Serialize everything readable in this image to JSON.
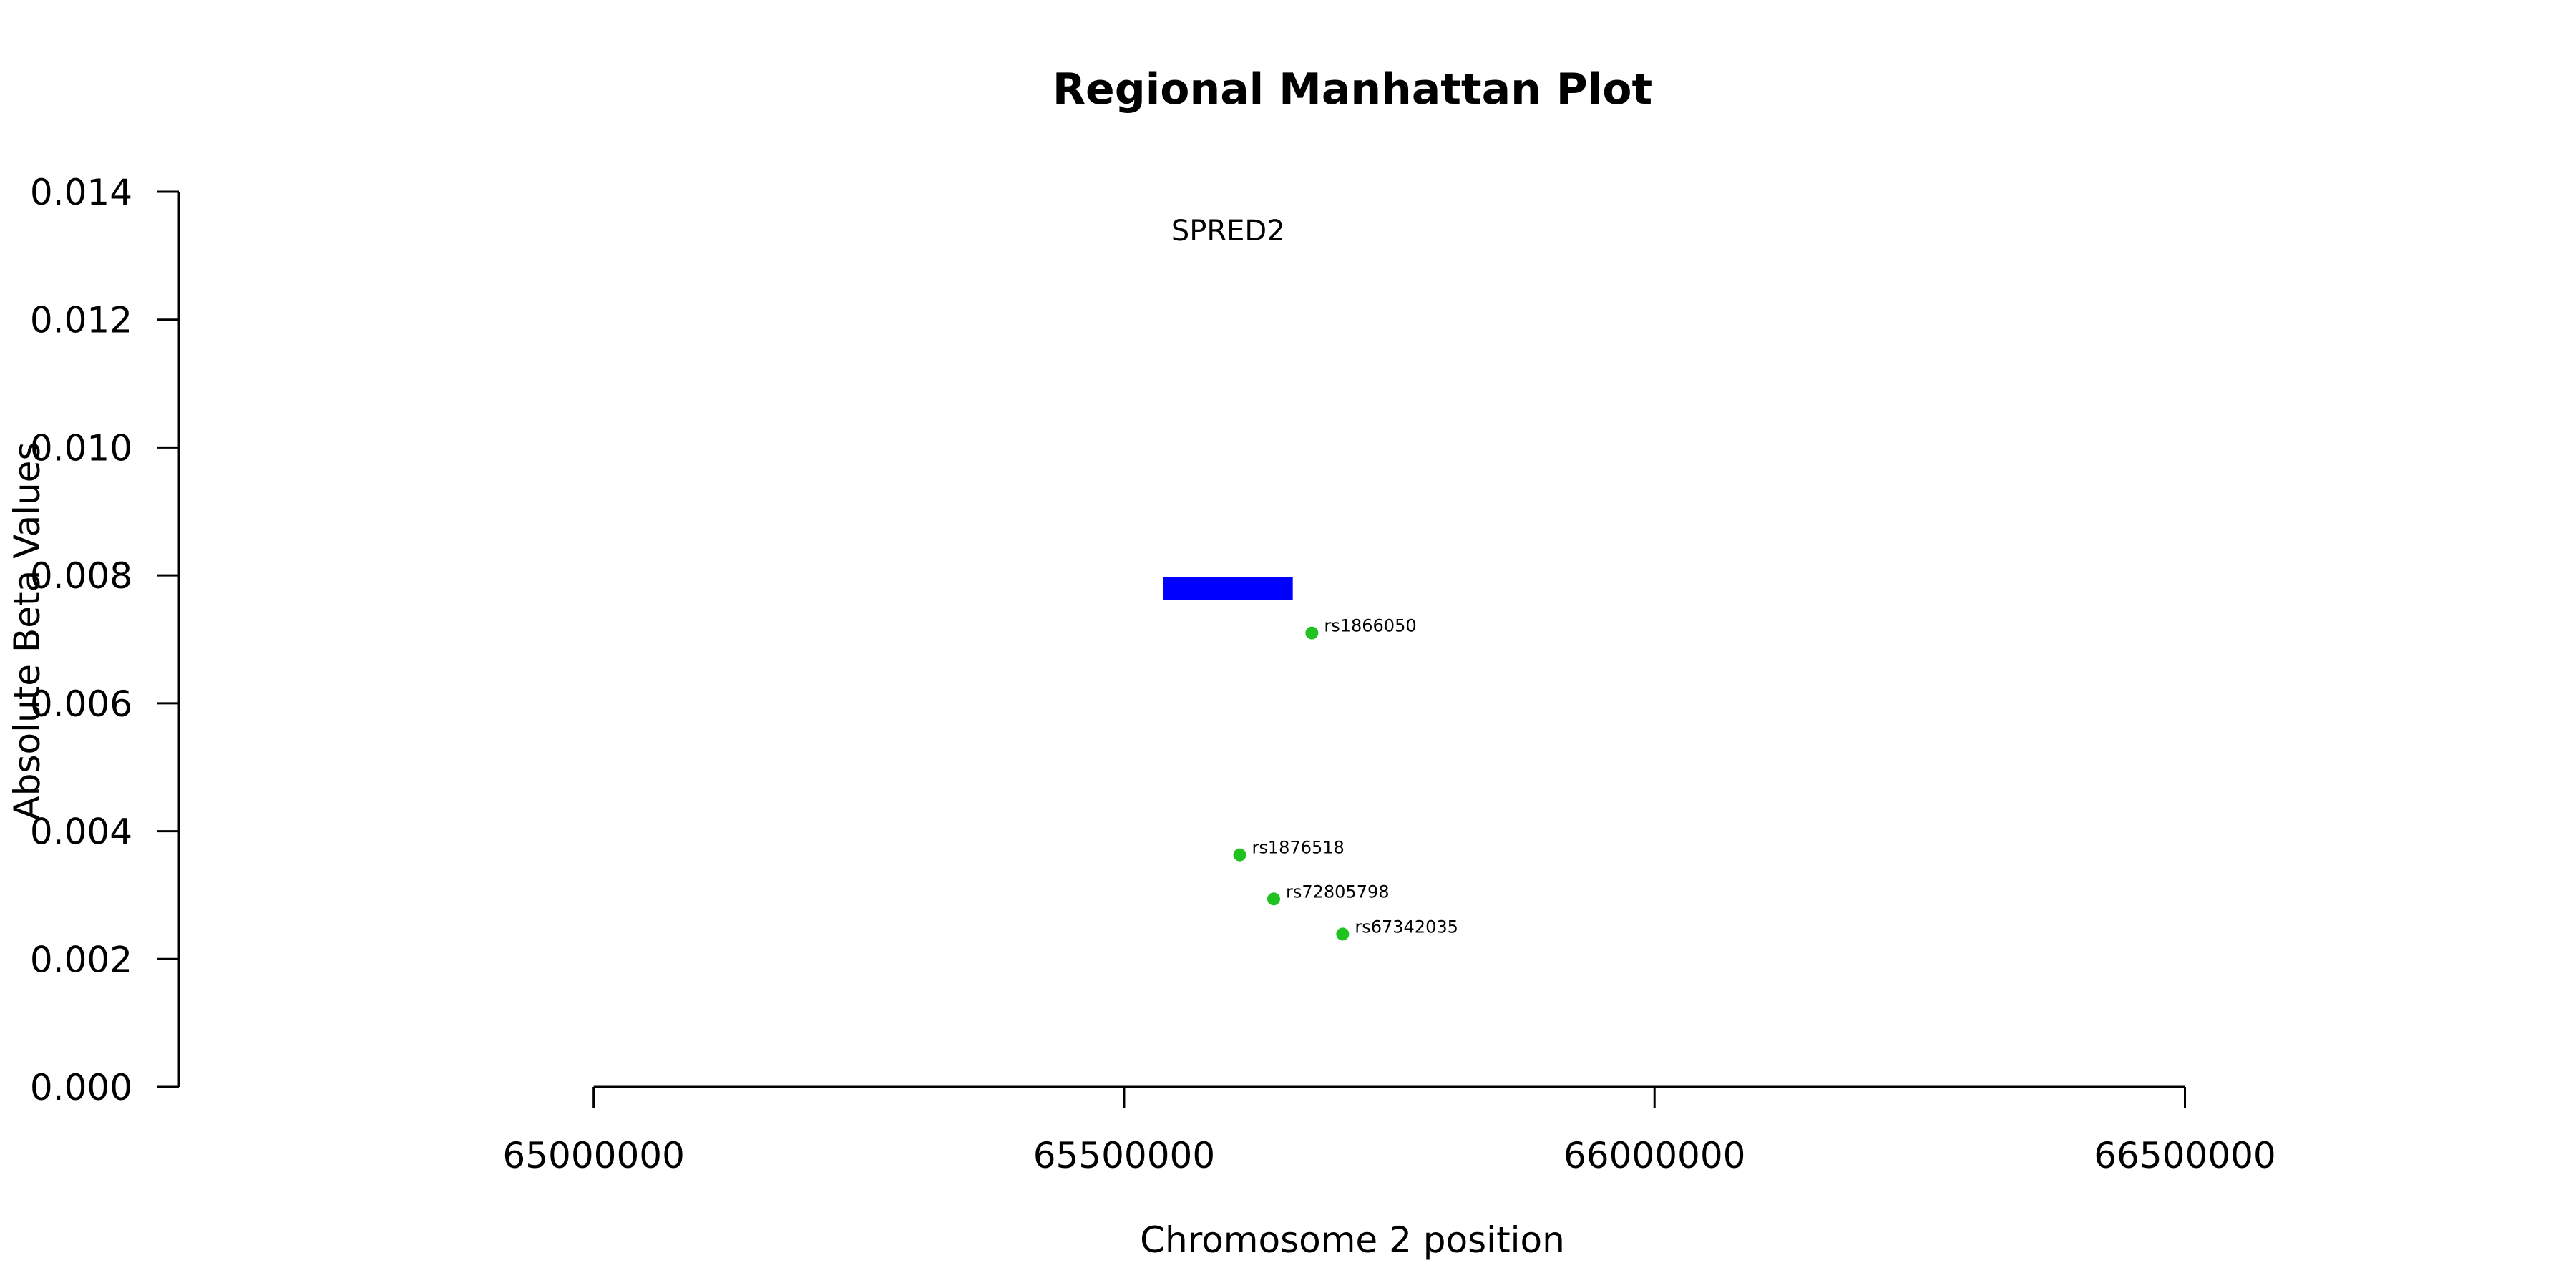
{
  "chart_data": {
    "type": "scatter",
    "title": "Regional Manhattan Plot",
    "xlabel": "Chromosome 2 position",
    "ylabel": "Absolute Beta Values",
    "xlim": [
      64609000,
      66700000
    ],
    "ylim": [
      0,
      0.014
    ],
    "x_ticks": [
      65000000,
      65500000,
      66000000,
      66500000
    ],
    "x_tick_labels": [
      "65000000",
      "65500000",
      "66000000",
      "66500000"
    ],
    "y_ticks": [
      0,
      0.002,
      0.004,
      0.006,
      0.008,
      0.01,
      0.012,
      0.014
    ],
    "y_tick_labels": [
      "0.000",
      "0.002",
      "0.004",
      "0.006",
      "0.008",
      "0.010",
      "0.012",
      "0.014"
    ],
    "grid": false,
    "gene": {
      "name": "SPRED2",
      "start": 65537000,
      "end": 65659000,
      "y": 0.0078,
      "color": "#0000ff"
    },
    "points": [
      {
        "label": "rs1866050",
        "x": 65677000,
        "y": 0.0071
      },
      {
        "label": "rs1876518",
        "x": 65609000,
        "y": 0.00363
      },
      {
        "label": "rs72805798",
        "x": 65641000,
        "y": 0.00294
      },
      {
        "label": "rs67342035",
        "x": 65706000,
        "y": 0.00239
      }
    ],
    "point_color": "#1fc21f"
  }
}
